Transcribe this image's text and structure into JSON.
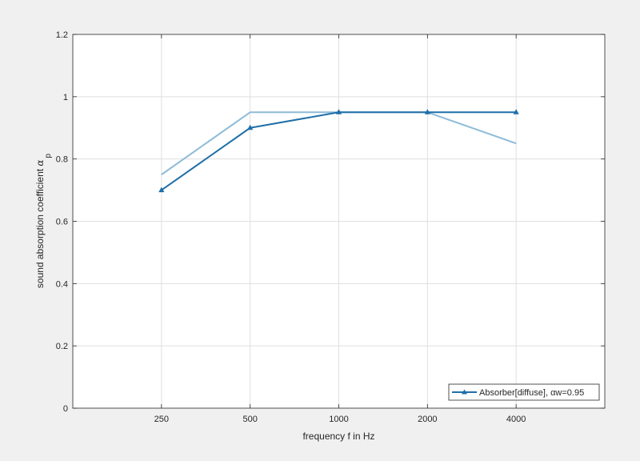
{
  "chart_data": {
    "type": "line",
    "categories": [
      "250",
      "500",
      "1000",
      "2000",
      "4000"
    ],
    "x_positions": [
      1,
      2,
      3,
      4,
      5
    ],
    "xlim": [
      0,
      6
    ],
    "ylim": [
      0,
      1.2
    ],
    "y_ticks": [
      "0",
      "0.2",
      "0.4",
      "0.6",
      "0.8",
      "1",
      "1.2"
    ],
    "y_tick_values": [
      0,
      0.2,
      0.4,
      0.6,
      0.8,
      1.0,
      1.2
    ],
    "xlabel": "frequency f in Hz",
    "ylabel_main": "sound absorption coefficient ",
    "ylabel_alpha": "α",
    "ylabel_sub": "p",
    "grid": true,
    "legend_position": "bottom-right",
    "series": [
      {
        "name": "Absorber[diffuse], αw=0.95",
        "values": [
          0.7,
          0.9,
          0.95,
          0.95,
          0.95
        ],
        "color": "#1f6fa8",
        "marker": "triangle",
        "in_legend": true
      },
      {
        "values": [
          0.75,
          0.95,
          0.95,
          0.95,
          0.85
        ],
        "color": "#8dbbd8",
        "marker": "none",
        "in_legend": false
      }
    ]
  },
  "colors": {
    "background": "#f0f0f0",
    "plot_background": "#ffffff",
    "axis": "#262626",
    "grid": "#dfdfdf"
  }
}
